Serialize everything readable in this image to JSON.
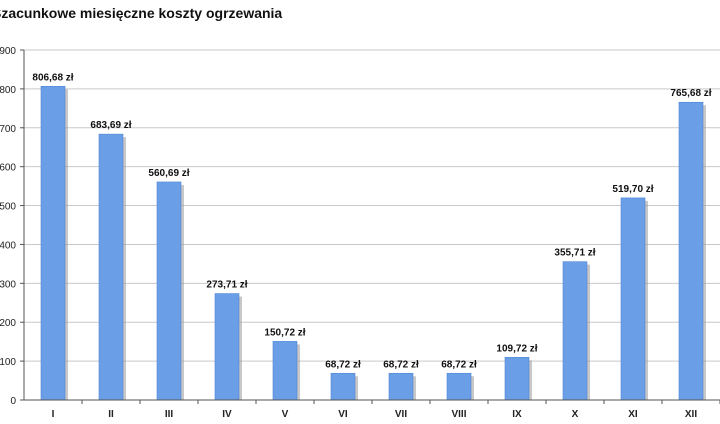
{
  "chart_data": {
    "type": "bar",
    "title": "Szacunkowe miesięczne koszty ogrzewania",
    "xlabel": "",
    "ylabel": "",
    "ylim": [
      0,
      900
    ],
    "yticks": [
      0,
      100,
      200,
      300,
      400,
      500,
      600,
      700,
      800,
      900
    ],
    "ytick_labels": [
      "0",
      "100",
      "200",
      "300",
      "400",
      "500",
      "600",
      "700",
      "800",
      "900"
    ],
    "grid": true,
    "categories": [
      "I",
      "II",
      "III",
      "IV",
      "V",
      "VI",
      "VII",
      "VIII",
      "IX",
      "X",
      "XI",
      "XII"
    ],
    "values": [
      806.68,
      683.69,
      560.69,
      273.71,
      150.72,
      68.72,
      68.72,
      68.72,
      109.72,
      355.71,
      519.7,
      765.68
    ],
    "data_labels": [
      "806,68 zł",
      "683,69 zł",
      "560,69 zł",
      "273,71 zł",
      "150,72 zł",
      "68,72 zł",
      "68,72 zł",
      "68,72 zł",
      "109,72 zł",
      "355,71 zł",
      "519,70 zł",
      "765,68 zł"
    ],
    "bar_color": "#6a9ee6",
    "bar_shadow_color": "#9a9a9a"
  }
}
